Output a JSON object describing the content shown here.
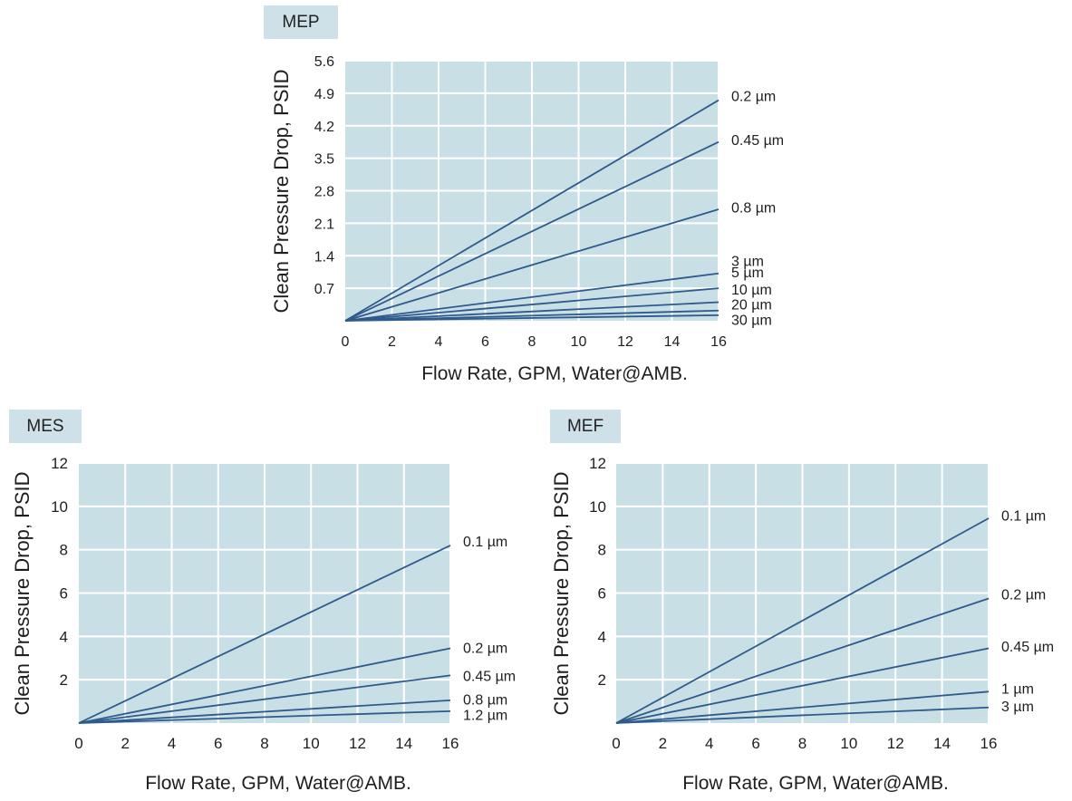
{
  "chart_data": [
    {
      "type": "line",
      "title": "MEP",
      "xlabel": "Flow Rate, GPM, Water@AMB.",
      "ylabel": "Clean Pressure Drop, PSID",
      "x_ticks": [
        "0",
        "2",
        "4",
        "6",
        "8",
        "10",
        "12",
        "14",
        "16"
      ],
      "y_ticks": [
        "0.7",
        "1.4",
        "2.1",
        "2.8",
        "3.5",
        "4.2",
        "4.9",
        "5.6"
      ],
      "xlim": [
        0,
        16
      ],
      "ylim": [
        0,
        5.6
      ],
      "grid": true,
      "plot_bg": "#c9dfe6",
      "line_color": "#2f5a8c",
      "series": [
        {
          "name": "0.2 µm",
          "x": [
            0,
            16
          ],
          "y": [
            0,
            4.75
          ],
          "label_y": 4.85
        },
        {
          "name": "0.45 µm",
          "x": [
            0,
            16
          ],
          "y": [
            0,
            3.85
          ],
          "label_y": 3.9
        },
        {
          "name": "0.8 µm",
          "x": [
            0,
            16
          ],
          "y": [
            0,
            2.4
          ],
          "label_y": 2.45
        },
        {
          "name": "3 µm",
          "x": [
            0,
            16
          ],
          "y": [
            0,
            1.02
          ],
          "label_y": 1.3
        },
        {
          "name": "5 µm",
          "x": [
            0,
            16
          ],
          "y": [
            0,
            0.7
          ],
          "label_y": 1.05
        },
        {
          "name": "10 µm",
          "x": [
            0,
            16
          ],
          "y": [
            0,
            0.4
          ],
          "label_y": 0.68
        },
        {
          "name": "20 µm",
          "x": [
            0,
            16
          ],
          "y": [
            0,
            0.22
          ],
          "label_y": 0.36
        },
        {
          "name": "30 µm",
          "x": [
            0,
            16
          ],
          "y": [
            0,
            0.12
          ],
          "label_y": 0.03
        }
      ]
    },
    {
      "type": "line",
      "title": "MES",
      "xlabel": "Flow Rate, GPM, Water@AMB.",
      "ylabel": "Clean Pressure Drop, PSID",
      "x_ticks": [
        "0",
        "2",
        "4",
        "6",
        "8",
        "10",
        "12",
        "14",
        "16"
      ],
      "y_ticks": [
        "2",
        "4",
        "6",
        "8",
        "10",
        "12"
      ],
      "xlim": [
        0,
        16
      ],
      "ylim": [
        0,
        12
      ],
      "grid": true,
      "plot_bg": "#c9dfe6",
      "line_color": "#2f5a8c",
      "series": [
        {
          "name": "0.1 µm",
          "x": [
            0,
            16
          ],
          "y": [
            0,
            8.2
          ],
          "label_y": 8.4
        },
        {
          "name": "0.2 µm",
          "x": [
            0,
            16
          ],
          "y": [
            0,
            3.45
          ],
          "label_y": 3.5
        },
        {
          "name": "0.45 µm",
          "x": [
            0,
            16
          ],
          "y": [
            0,
            2.2
          ],
          "label_y": 2.2
        },
        {
          "name": "0.8 µm",
          "x": [
            0,
            16
          ],
          "y": [
            0,
            1.05
          ],
          "label_y": 1.1
        },
        {
          "name": "1.2 µm",
          "x": [
            0,
            16
          ],
          "y": [
            0,
            0.55
          ],
          "label_y": 0.4
        }
      ]
    },
    {
      "type": "line",
      "title": "MEF",
      "xlabel": "Flow Rate, GPM, Water@AMB.",
      "ylabel": "Clean Pressure Drop, PSID",
      "x_ticks": [
        "0",
        "2",
        "4",
        "6",
        "8",
        "10",
        "12",
        "14",
        "16"
      ],
      "y_ticks": [
        "2",
        "4",
        "6",
        "8",
        "10",
        "12"
      ],
      "xlim": [
        0,
        16
      ],
      "ylim": [
        0,
        12
      ],
      "grid": true,
      "plot_bg": "#c9dfe6",
      "line_color": "#2f5a8c",
      "series": [
        {
          "name": "0.1 µm",
          "x": [
            0,
            16
          ],
          "y": [
            0,
            9.45
          ],
          "label_y": 9.6
        },
        {
          "name": "0.2 µm",
          "x": [
            0,
            16
          ],
          "y": [
            0,
            5.75
          ],
          "label_y": 5.95
        },
        {
          "name": "0.45 µm",
          "x": [
            0,
            16
          ],
          "y": [
            0,
            3.45
          ],
          "label_y": 3.55
        },
        {
          "name": "1 µm",
          "x": [
            0,
            16
          ],
          "y": [
            0,
            1.45
          ],
          "label_y": 1.6
        },
        {
          "name": "3 µm",
          "x": [
            0,
            16
          ],
          "y": [
            0,
            0.72
          ],
          "label_y": 0.8
        }
      ]
    }
  ]
}
